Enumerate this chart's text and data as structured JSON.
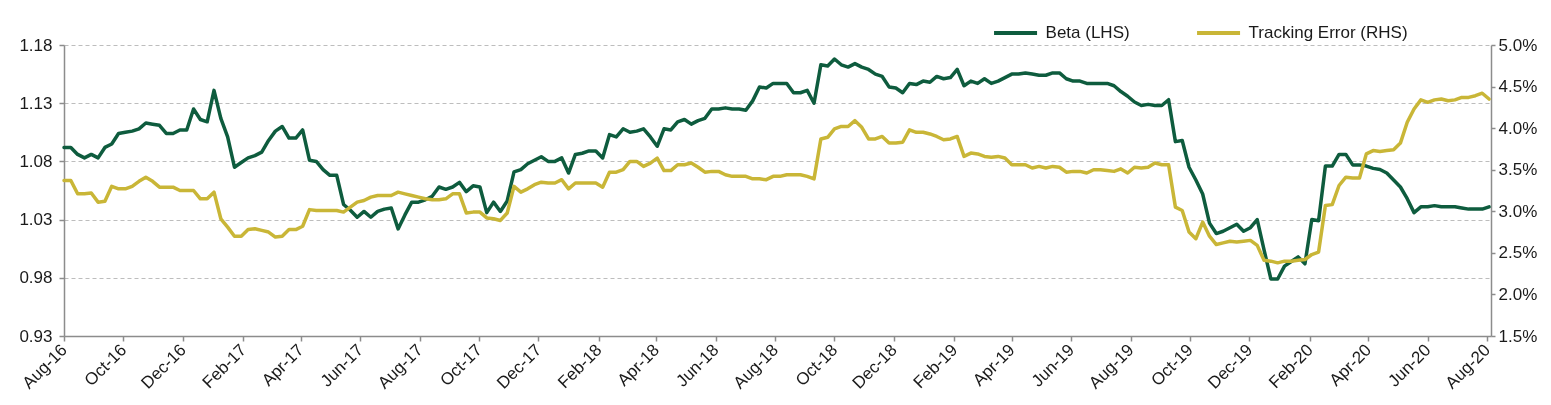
{
  "chart_data": {
    "type": "line",
    "legend": "top right",
    "grid": "y",
    "line_style": "solid",
    "xlim": [
      "2016-08-01",
      "2020-08-05"
    ],
    "xticks": [
      {
        "value": "2016-08",
        "label": "Aug-16"
      },
      {
        "value": "2016-10",
        "label": "Oct-16"
      },
      {
        "value": "2016-12",
        "label": "Dec-16"
      },
      {
        "value": "2017-02",
        "label": "Feb-17"
      },
      {
        "value": "2017-04",
        "label": "Apr-17"
      },
      {
        "value": "2017-06",
        "label": "Jun-17"
      },
      {
        "value": "2017-08",
        "label": "Aug-17"
      },
      {
        "value": "2017-10",
        "label": "Oct-17"
      },
      {
        "value": "2017-12",
        "label": "Dec-17"
      },
      {
        "value": "2018-02",
        "label": "Feb-18"
      },
      {
        "value": "2018-04",
        "label": "Apr-18"
      },
      {
        "value": "2018-06",
        "label": "Jun-18"
      },
      {
        "value": "2018-08",
        "label": "Aug-18"
      },
      {
        "value": "2018-10",
        "label": "Oct-18"
      },
      {
        "value": "2018-12",
        "label": "Dec-18"
      },
      {
        "value": "2019-02",
        "label": "Feb-19"
      },
      {
        "value": "2019-04",
        "label": "Apr-19"
      },
      {
        "value": "2019-06",
        "label": "Jun-19"
      },
      {
        "value": "2019-08",
        "label": "Aug-19"
      },
      {
        "value": "2019-10",
        "label": "Oct-19"
      },
      {
        "value": "2019-12",
        "label": "Dec-19"
      },
      {
        "value": "2020-02",
        "label": "Feb-20"
      },
      {
        "value": "2020-04",
        "label": "Apr-20"
      },
      {
        "value": "2020-06",
        "label": "Jun-20"
      },
      {
        "value": "2020-08",
        "label": "Aug-20"
      }
    ],
    "ylim": [
      0.93,
      1.18
    ],
    "yticks": [
      0.93,
      0.98,
      1.03,
      1.08,
      1.13,
      1.18
    ],
    "y2lim": [
      1.5,
      5.0
    ],
    "y2ticks": [
      {
        "value": 1.5,
        "label": "1.5%"
      },
      {
        "value": 2.0,
        "label": "2.0%"
      },
      {
        "value": 2.5,
        "label": "2.5%"
      },
      {
        "value": 3.0,
        "label": "3.0%"
      },
      {
        "value": 3.5,
        "label": "3.5%"
      },
      {
        "value": 4.0,
        "label": "4.0%"
      },
      {
        "value": 4.5,
        "label": "4.5%"
      },
      {
        "value": 5.0,
        "label": "5.0%"
      }
    ],
    "x": [
      "2016-08-01",
      "2016-08-08",
      "2016-08-15",
      "2016-08-22",
      "2016-08-29",
      "2016-09-05",
      "2016-09-12",
      "2016-09-19",
      "2016-09-26",
      "2016-10-03",
      "2016-10-10",
      "2016-10-17",
      "2016-10-24",
      "2016-10-31",
      "2016-11-07",
      "2016-11-14",
      "2016-11-21",
      "2016-11-28",
      "2016-12-05",
      "2016-12-12",
      "2016-12-19",
      "2016-12-26",
      "2017-01-02",
      "2017-01-09",
      "2017-01-16",
      "2017-01-23",
      "2017-01-30",
      "2017-02-06",
      "2017-02-13",
      "2017-02-20",
      "2017-02-27",
      "2017-03-06",
      "2017-03-13",
      "2017-03-20",
      "2017-03-27",
      "2017-04-03",
      "2017-04-10",
      "2017-04-17",
      "2017-04-24",
      "2017-05-01",
      "2017-05-08",
      "2017-05-15",
      "2017-05-22",
      "2017-05-29",
      "2017-06-05",
      "2017-06-12",
      "2017-06-19",
      "2017-06-26",
      "2017-07-03",
      "2017-07-10",
      "2017-07-17",
      "2017-07-24",
      "2017-07-31",
      "2017-08-07",
      "2017-08-14",
      "2017-08-21",
      "2017-08-28",
      "2017-09-04",
      "2017-09-11",
      "2017-09-18",
      "2017-09-25",
      "2017-10-02",
      "2017-10-09",
      "2017-10-16",
      "2017-10-23",
      "2017-10-30",
      "2017-11-06",
      "2017-11-13",
      "2017-11-20",
      "2017-11-27",
      "2017-12-04",
      "2017-12-11",
      "2017-12-18",
      "2017-12-25",
      "2018-01-01",
      "2018-01-08",
      "2018-01-15",
      "2018-01-22",
      "2018-01-29",
      "2018-02-05",
      "2018-02-12",
      "2018-02-19",
      "2018-02-26",
      "2018-03-05",
      "2018-03-12",
      "2018-03-19",
      "2018-03-26",
      "2018-04-02",
      "2018-04-09",
      "2018-04-16",
      "2018-04-23",
      "2018-04-30",
      "2018-05-07",
      "2018-05-14",
      "2018-05-21",
      "2018-05-28",
      "2018-06-04",
      "2018-06-11",
      "2018-06-18",
      "2018-06-25",
      "2018-07-02",
      "2018-07-09",
      "2018-07-16",
      "2018-07-23",
      "2018-07-30",
      "2018-08-06",
      "2018-08-13",
      "2018-08-20",
      "2018-08-27",
      "2018-09-03",
      "2018-09-10",
      "2018-09-17",
      "2018-09-24",
      "2018-10-01",
      "2018-10-08",
      "2018-10-15",
      "2018-10-22",
      "2018-10-29",
      "2018-11-05",
      "2018-11-12",
      "2018-11-19",
      "2018-11-26",
      "2018-12-03",
      "2018-12-10",
      "2018-12-17",
      "2018-12-24",
      "2018-12-31",
      "2019-01-07",
      "2019-01-14",
      "2019-01-21",
      "2019-01-28",
      "2019-02-04",
      "2019-02-11",
      "2019-02-18",
      "2019-02-25",
      "2019-03-04",
      "2019-03-11",
      "2019-03-18",
      "2019-03-25",
      "2019-04-01",
      "2019-04-08",
      "2019-04-15",
      "2019-04-22",
      "2019-04-29",
      "2019-05-06",
      "2019-05-13",
      "2019-05-20",
      "2019-05-27",
      "2019-06-03",
      "2019-06-10",
      "2019-06-17",
      "2019-06-24",
      "2019-07-01",
      "2019-07-08",
      "2019-07-15",
      "2019-07-22",
      "2019-07-29",
      "2019-08-05",
      "2019-08-12",
      "2019-08-19",
      "2019-08-26",
      "2019-09-02",
      "2019-09-09",
      "2019-09-16",
      "2019-09-23",
      "2019-09-30",
      "2019-10-07",
      "2019-10-14",
      "2019-10-21",
      "2019-10-28",
      "2019-11-04",
      "2019-11-11",
      "2019-11-18",
      "2019-11-25",
      "2019-12-02",
      "2019-12-09",
      "2019-12-16",
      "2019-12-23",
      "2019-12-30",
      "2020-01-06",
      "2020-01-13",
      "2020-01-20",
      "2020-01-27",
      "2020-02-03",
      "2020-02-10",
      "2020-02-17",
      "2020-02-24",
      "2020-03-02",
      "2020-03-09",
      "2020-03-16",
      "2020-03-23",
      "2020-03-30",
      "2020-04-06",
      "2020-04-13",
      "2020-04-20",
      "2020-04-27",
      "2020-05-04",
      "2020-05-11",
      "2020-05-18",
      "2020-05-25",
      "2020-06-01",
      "2020-06-08",
      "2020-06-15",
      "2020-06-22",
      "2020-06-29",
      "2020-07-06",
      "2020-07-13",
      "2020-07-20",
      "2020-07-27",
      "2020-08-03"
    ],
    "series": [
      {
        "name": "Beta (LHS)",
        "color": "#0e5c3e",
        "values": [
          1.092,
          1.092,
          1.086,
          1.083,
          1.086,
          1.083,
          1.092,
          1.095,
          1.104,
          1.105,
          1.106,
          1.108,
          1.113,
          1.112,
          1.111,
          1.104,
          1.104,
          1.107,
          1.107,
          1.125,
          1.116,
          1.114,
          1.141,
          1.117,
          1.101,
          1.075,
          1.079,
          1.083,
          1.085,
          1.088,
          1.098,
          1.106,
          1.11,
          1.1,
          1.1,
          1.107,
          1.081,
          1.08,
          1.073,
          1.068,
          1.068,
          1.043,
          1.038,
          1.032,
          1.037,
          1.032,
          1.037,
          1.039,
          1.04,
          1.022,
          1.034,
          1.045,
          1.045,
          1.047,
          1.05,
          1.058,
          1.056,
          1.058,
          1.062,
          1.054,
          1.059,
          1.058,
          1.036,
          1.045,
          1.037,
          1.046,
          1.071,
          1.073,
          1.078,
          1.081,
          1.084,
          1.08,
          1.08,
          1.083,
          1.07,
          1.086,
          1.087,
          1.089,
          1.089,
          1.083,
          1.103,
          1.101,
          1.108,
          1.105,
          1.106,
          1.108,
          1.101,
          1.093,
          1.108,
          1.107,
          1.114,
          1.116,
          1.112,
          1.115,
          1.117,
          1.125,
          1.125,
          1.126,
          1.125,
          1.125,
          1.124,
          1.132,
          1.144,
          1.143,
          1.147,
          1.147,
          1.147,
          1.139,
          1.139,
          1.141,
          1.13,
          1.163,
          1.162,
          1.168,
          1.163,
          1.161,
          1.164,
          1.161,
          1.159,
          1.155,
          1.153,
          1.144,
          1.143,
          1.139,
          1.147,
          1.146,
          1.149,
          1.148,
          1.153,
          1.151,
          1.152,
          1.159,
          1.145,
          1.149,
          1.147,
          1.151,
          1.147,
          1.149,
          1.152,
          1.155,
          1.155,
          1.156,
          1.155,
          1.154,
          1.154,
          1.156,
          1.156,
          1.151,
          1.149,
          1.149,
          1.147,
          1.147,
          1.147,
          1.147,
          1.145,
          1.14,
          1.136,
          1.131,
          1.128,
          1.129,
          1.128,
          1.128,
          1.133,
          1.097,
          1.098,
          1.075,
          1.064,
          1.052,
          1.027,
          1.018,
          1.02,
          1.023,
          1.026,
          1.02,
          1.023,
          1.03,
          1.004,
          0.979,
          0.979,
          0.99,
          0.994,
          0.998,
          0.992,
          1.03,
          1.029,
          1.076,
          1.076,
          1.086,
          1.086,
          1.077,
          1.077,
          1.076,
          1.074,
          1.073,
          1.07,
          1.064,
          1.058,
          1.048,
          1.036,
          1.041,
          1.041,
          1.042,
          1.041,
          1.041,
          1.041,
          1.04,
          1.039,
          1.039,
          1.039,
          1.041
        ]
      },
      {
        "name": "Tracking Error (RHS)",
        "color": "#c9b637",
        "axis": "y2",
        "values": [
          3.37,
          3.37,
          3.21,
          3.21,
          3.22,
          3.11,
          3.12,
          3.3,
          3.27,
          3.27,
          3.3,
          3.36,
          3.41,
          3.36,
          3.29,
          3.29,
          3.29,
          3.25,
          3.25,
          3.25,
          3.15,
          3.15,
          3.23,
          2.91,
          2.81,
          2.7,
          2.7,
          2.78,
          2.79,
          2.77,
          2.75,
          2.69,
          2.7,
          2.78,
          2.78,
          2.82,
          3.02,
          3.01,
          3.01,
          3.01,
          3.01,
          2.99,
          3.05,
          3.11,
          3.13,
          3.17,
          3.19,
          3.19,
          3.19,
          3.23,
          3.21,
          3.19,
          3.17,
          3.15,
          3.14,
          3.14,
          3.15,
          3.21,
          3.21,
          2.98,
          2.99,
          2.99,
          2.92,
          2.91,
          2.89,
          2.98,
          3.3,
          3.23,
          3.27,
          3.32,
          3.35,
          3.34,
          3.34,
          3.38,
          3.27,
          3.34,
          3.34,
          3.34,
          3.34,
          3.29,
          3.47,
          3.47,
          3.5,
          3.6,
          3.6,
          3.54,
          3.58,
          3.64,
          3.49,
          3.49,
          3.56,
          3.56,
          3.58,
          3.53,
          3.47,
          3.48,
          3.48,
          3.44,
          3.42,
          3.42,
          3.42,
          3.39,
          3.39,
          3.38,
          3.42,
          3.42,
          3.44,
          3.44,
          3.44,
          3.42,
          3.39,
          3.87,
          3.89,
          3.99,
          4.02,
          4.02,
          4.09,
          4.01,
          3.87,
          3.87,
          3.9,
          3.82,
          3.82,
          3.83,
          3.98,
          3.95,
          3.95,
          3.93,
          3.9,
          3.86,
          3.87,
          3.9,
          3.66,
          3.7,
          3.69,
          3.66,
          3.65,
          3.66,
          3.64,
          3.56,
          3.56,
          3.56,
          3.52,
          3.54,
          3.52,
          3.54,
          3.53,
          3.47,
          3.48,
          3.48,
          3.46,
          3.5,
          3.5,
          3.49,
          3.48,
          3.51,
          3.46,
          3.53,
          3.52,
          3.53,
          3.58,
          3.56,
          3.56,
          3.05,
          3.01,
          2.75,
          2.67,
          2.87,
          2.7,
          2.6,
          2.62,
          2.64,
          2.63,
          2.64,
          2.65,
          2.59,
          2.41,
          2.4,
          2.38,
          2.4,
          2.4,
          2.41,
          2.42,
          2.48,
          2.51,
          3.07,
          3.08,
          3.31,
          3.41,
          3.4,
          3.4,
          3.69,
          3.73,
          3.72,
          3.73,
          3.74,
          3.82,
          4.07,
          4.23,
          4.34,
          4.31,
          4.34,
          4.35,
          4.33,
          4.34,
          4.37,
          4.37,
          4.39,
          4.42,
          4.35
        ]
      }
    ]
  }
}
